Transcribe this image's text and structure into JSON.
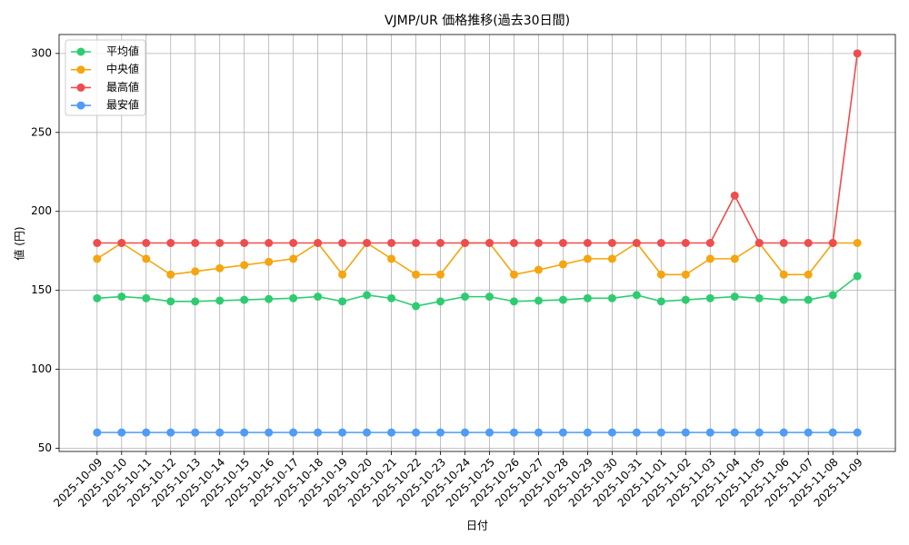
{
  "chart_data": {
    "type": "line",
    "title": "VJMP/UR 価格推移(過去30日間)",
    "x_label": "日付",
    "y_label": "値 (円)",
    "categories": [
      "2025-10-09",
      "2025-10-10",
      "2025-10-11",
      "2025-10-12",
      "2025-10-13",
      "2025-10-14",
      "2025-10-15",
      "2025-10-16",
      "2025-10-17",
      "2025-10-18",
      "2025-10-19",
      "2025-10-20",
      "2025-10-21",
      "2025-10-22",
      "2025-10-23",
      "2025-10-24",
      "2025-10-25",
      "2025-10-26",
      "2025-10-27",
      "2025-10-28",
      "2025-10-29",
      "2025-10-30",
      "2025-10-31",
      "2025-11-01",
      "2025-11-02",
      "2025-11-03",
      "2025-11-04",
      "2025-11-05",
      "2025-11-06",
      "2025-11-07",
      "2025-11-08",
      "2025-11-09"
    ],
    "series": [
      {
        "name": "平均値",
        "color": "#2ecc71",
        "values": [
          145,
          146,
          145,
          143,
          143,
          143.5,
          144,
          144.5,
          145,
          146,
          143,
          147,
          145,
          140,
          143,
          146,
          146,
          143,
          143.5,
          144,
          145,
          145,
          147,
          143,
          144,
          145,
          146,
          145,
          144,
          144,
          147,
          159
        ]
      },
      {
        "name": "中央値",
        "color": "#f5a50f",
        "values": [
          170,
          180,
          170,
          160,
          162,
          164,
          166,
          168,
          170,
          180,
          160,
          180,
          170,
          160,
          160,
          180,
          180,
          160,
          163,
          166.5,
          170,
          170,
          180,
          160,
          160,
          170,
          170,
          180,
          160,
          160,
          180,
          180
        ]
      },
      {
        "name": "最高値",
        "color": "#ef4d4d",
        "values": [
          180,
          180,
          180,
          180,
          180,
          180,
          180,
          180,
          180,
          180,
          180,
          180,
          180,
          180,
          180,
          180,
          180,
          180,
          180,
          180,
          180,
          180,
          180,
          180,
          180,
          180,
          210,
          180,
          180,
          180,
          180,
          300
        ]
      },
      {
        "name": "最安値",
        "color": "#4f9bf5",
        "values": [
          60,
          60,
          60,
          60,
          60,
          60,
          60,
          60,
          60,
          60,
          60,
          60,
          60,
          60,
          60,
          60,
          60,
          60,
          60,
          60,
          60,
          60,
          60,
          60,
          60,
          60,
          60,
          60,
          60,
          60,
          60,
          60
        ]
      }
    ],
    "ylim": [
      48,
      312
    ],
    "yticks": [
      50,
      100,
      150,
      200,
      250,
      300
    ],
    "grid": true,
    "legend": "upper-left"
  }
}
